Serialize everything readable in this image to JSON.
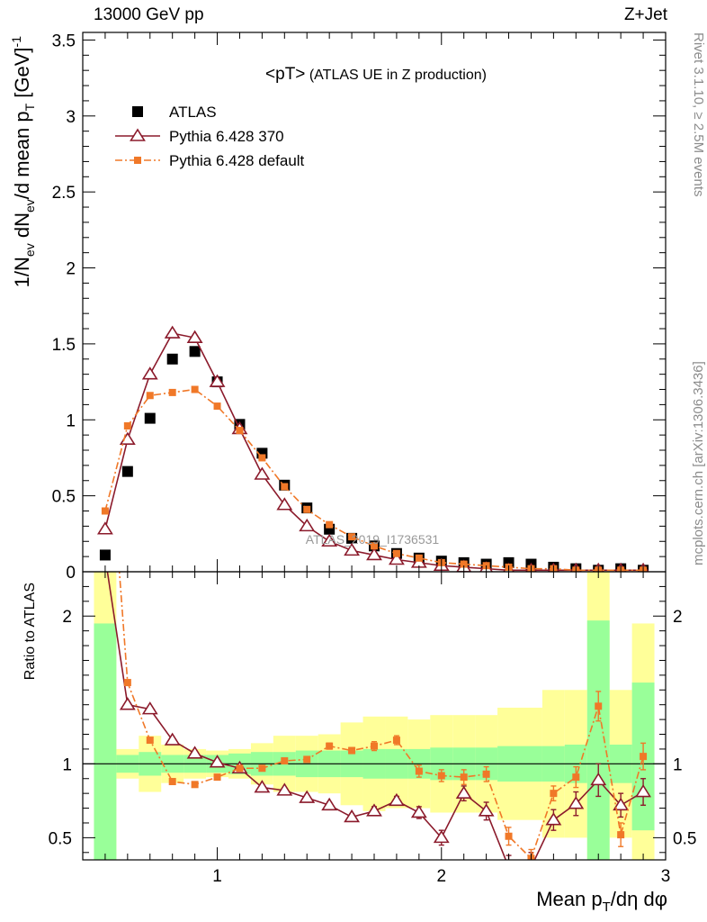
{
  "header": {
    "left": "13000 GeV pp",
    "right": "Z+Jet"
  },
  "side": {
    "rivet": "Rivet 3.1.10, ≥ 2.5M events",
    "mcplots": "mcplots.cern.ch [arXiv:1306.3436]"
  },
  "chart_data": [
    {
      "type": "scatter",
      "title": "<pT>",
      "subtitle": "(ATLAS UE in Z production)",
      "watermark": "ATLAS_2019_I1736531",
      "xlim": [
        0.4,
        3.0
      ],
      "ylim": [
        0,
        3.55
      ],
      "ylabel": "1/N_ev dN_ev/d mean p_T [GeV]^-1",
      "yticks": [
        0,
        0.5,
        1,
        1.5,
        2,
        2.5,
        3,
        3.5
      ],
      "yticklabels": [
        "0",
        "0.5",
        "1",
        "1.5",
        "2",
        "2.5",
        "3",
        "3.5"
      ],
      "x": [
        0.5,
        0.6,
        0.7,
        0.8,
        0.9,
        1.0,
        1.1,
        1.2,
        1.3,
        1.4,
        1.5,
        1.6,
        1.7,
        1.8,
        1.9,
        2.0,
        2.1,
        2.2,
        2.3,
        2.4,
        2.5,
        2.6,
        2.7,
        2.8,
        2.9
      ],
      "legend_position": "top-left",
      "series": [
        {
          "name": "ATLAS",
          "color": "#000000",
          "marker": "square",
          "values": [
            0.11,
            0.66,
            1.01,
            1.4,
            1.45,
            1.25,
            0.97,
            0.78,
            0.57,
            0.42,
            0.28,
            0.22,
            0.17,
            0.12,
            0.09,
            0.07,
            0.06,
            0.05,
            0.06,
            0.05,
            0.03,
            0.02,
            0.01,
            0.02,
            0.01
          ]
        },
        {
          "name": "Pythia 6.428 370",
          "color": "#8b1a2b",
          "marker": "triangle",
          "line": "solid",
          "values": [
            0.28,
            0.87,
            1.3,
            1.57,
            1.54,
            1.25,
            0.94,
            0.64,
            0.44,
            0.3,
            0.2,
            0.14,
            0.11,
            0.08,
            0.06,
            0.04,
            0.03,
            0.02,
            0.01,
            0.01,
            0.01,
            0.01,
            0.01,
            0.01,
            0.01
          ]
        },
        {
          "name": "Pythia 6.428 default",
          "color": "#f07828",
          "marker": "small-square",
          "line": "dashdot",
          "values": [
            0.4,
            0.96,
            1.16,
            1.18,
            1.2,
            1.09,
            0.93,
            0.75,
            0.56,
            0.41,
            0.31,
            0.23,
            0.17,
            0.12,
            0.09,
            0.06,
            0.05,
            0.04,
            0.03,
            0.02,
            0.02,
            0.01,
            0.01,
            0.01,
            0.01
          ]
        }
      ]
    },
    {
      "type": "line",
      "xlim": [
        0.4,
        3.0
      ],
      "ylim": [
        0.35,
        2.3
      ],
      "xlabel": "Mean p_T/dη dφ",
      "ylabel": "Ratio to ATLAS",
      "xticks": [
        1,
        2,
        3
      ],
      "xticklabels": [
        "1",
        "2",
        "3"
      ],
      "yticks": [
        0.5,
        1,
        2
      ],
      "yticklabels": [
        "0.5",
        "1",
        "2"
      ],
      "reference_line": 1,
      "bin_edges": [
        0.45,
        0.55,
        0.65,
        0.75,
        0.85,
        0.95,
        1.05,
        1.15,
        1.25,
        1.35,
        1.45,
        1.55,
        1.65,
        1.75,
        1.85,
        1.95,
        2.05,
        2.15,
        2.25,
        2.35,
        2.45,
        2.55,
        2.65,
        2.75,
        2.85,
        2.95
      ],
      "band_inner": {
        "color": "#99ff99",
        "low": [
          0.3,
          0.94,
          0.92,
          0.94,
          0.94,
          0.94,
          0.93,
          0.92,
          0.92,
          0.91,
          0.91,
          0.91,
          0.9,
          0.9,
          0.9,
          0.89,
          0.89,
          0.89,
          0.88,
          0.88,
          0.88,
          0.87,
          0.3,
          0.87,
          0.55
        ],
        "high": [
          1.95,
          1.06,
          1.08,
          1.06,
          1.06,
          1.06,
          1.07,
          1.08,
          1.08,
          1.09,
          1.09,
          1.09,
          1.1,
          1.1,
          1.1,
          1.11,
          1.11,
          1.11,
          1.12,
          1.12,
          1.12,
          1.13,
          1.97,
          1.13,
          1.55
        ]
      },
      "band_outer": {
        "color": "#ffff99",
        "low": [
          0.3,
          0.9,
          0.81,
          0.87,
          0.9,
          0.91,
          0.9,
          0.86,
          0.81,
          0.81,
          0.8,
          0.72,
          0.68,
          0.7,
          0.7,
          0.67,
          0.67,
          0.67,
          0.62,
          0.62,
          0.5,
          0.5,
          0.3,
          0.5,
          0.3
        ],
        "high": [
          2.3,
          1.1,
          1.19,
          1.13,
          1.1,
          1.09,
          1.1,
          1.14,
          1.19,
          1.19,
          1.2,
          1.28,
          1.32,
          1.32,
          1.3,
          1.33,
          1.33,
          1.33,
          1.38,
          1.38,
          1.5,
          1.5,
          2.3,
          1.5,
          1.95
        ]
      },
      "series": [
        {
          "name": "Pythia 6.428 370",
          "color": "#8b1a2b",
          "marker": "triangle",
          "line": "solid",
          "values": [
            2.4,
            1.4,
            1.37,
            1.16,
            1.07,
            1.01,
            0.97,
            0.84,
            0.82,
            0.77,
            0.72,
            0.64,
            0.68,
            0.75,
            0.67,
            0.5,
            0.8,
            0.68,
            0.3,
            0.3,
            0.62,
            0.73,
            0.89,
            0.72,
            0.81
          ],
          "errors": [
            0,
            0,
            0,
            0,
            0,
            0,
            0,
            0,
            0,
            0,
            0.02,
            0.02,
            0.03,
            0.03,
            0.04,
            0.05,
            0.05,
            0.06,
            0.08,
            0.1,
            0.07,
            0.08,
            0.11,
            0.08,
            0.09
          ]
        },
        {
          "name": "Pythia 6.428 default",
          "color": "#f07828",
          "marker": "small-square",
          "line": "dashdot",
          "values": [
            3.6,
            1.55,
            1.16,
            0.88,
            0.86,
            0.91,
            0.97,
            0.97,
            1.02,
            1.03,
            1.12,
            1.09,
            1.12,
            1.16,
            0.95,
            0.92,
            0.91,
            0.93,
            0.51,
            0.36,
            0.8,
            0.91,
            1.39,
            0.52,
            1.05
          ],
          "errors": [
            0,
            0,
            0,
            0,
            0,
            0,
            0,
            0,
            0,
            0,
            0.02,
            0.02,
            0.03,
            0.03,
            0.04,
            0.04,
            0.05,
            0.05,
            0.06,
            0.06,
            0.05,
            0.07,
            0.1,
            0.08,
            0.09
          ]
        }
      ]
    }
  ]
}
